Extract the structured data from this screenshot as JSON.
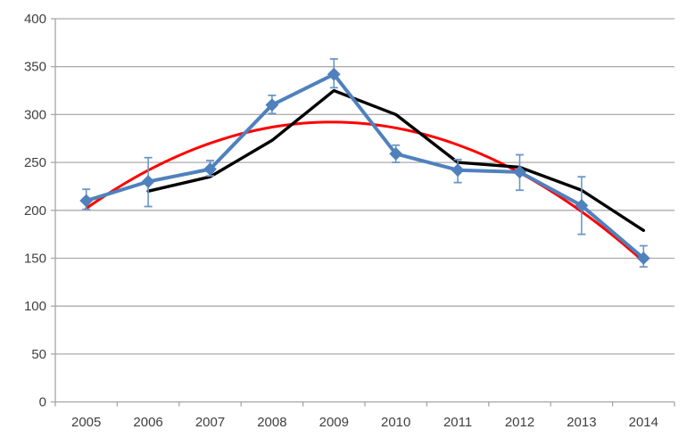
{
  "chart_data": {
    "type": "line",
    "title": "",
    "xlabel": "",
    "ylabel": "",
    "categories": [
      "2005",
      "2006",
      "2007",
      "2008",
      "2009",
      "2010",
      "2011",
      "2012",
      "2013",
      "2014"
    ],
    "ylim": [
      0,
      400
    ],
    "ytick_step": 50,
    "ytick_labels": [
      "0",
      "50",
      "100",
      "150",
      "200",
      "250",
      "300",
      "350",
      "400"
    ],
    "grid": "horizontal",
    "legend_position": "none",
    "colors": {
      "axis": "#a6a6a6",
      "gridline": "#ababab",
      "tick_label": "#3f3f3f",
      "series_blue": "#4f81bd",
      "error_bar_blue": "#6b96c9",
      "series_black": "#000000",
      "trendline_red": "#ff0000",
      "background": "#ffffff"
    },
    "series": [
      {
        "name": "observed-values-blue",
        "color": "#4f81bd",
        "marker": "diamond",
        "line_width": 4,
        "values": [
          210,
          230,
          243,
          310,
          342,
          259,
          242,
          240,
          205,
          150
        ],
        "error_high": [
          222,
          255,
          252,
          320,
          358,
          268,
          253,
          258,
          235,
          163
        ],
        "error_low": [
          201,
          204,
          236,
          301,
          328,
          250,
          229,
          221,
          175,
          141
        ]
      },
      {
        "name": "comparison-line-black",
        "color": "#000000",
        "marker": "none",
        "line_width": 3.4,
        "values": [
          null,
          220,
          235,
          273,
          325,
          300,
          250,
          245,
          221,
          179
        ]
      },
      {
        "name": "quadratic-trendline-red",
        "color": "#ff0000",
        "marker": "none",
        "line_width": 3,
        "smooth": true,
        "trend": {
          "type": "polynomial",
          "order": 2,
          "coefficients_abc": [
            -5.74,
            45.5,
            202
          ]
        },
        "values": [
          202,
          242,
          270,
          287,
          292,
          286,
          269,
          239,
          199,
          147
        ]
      }
    ]
  }
}
